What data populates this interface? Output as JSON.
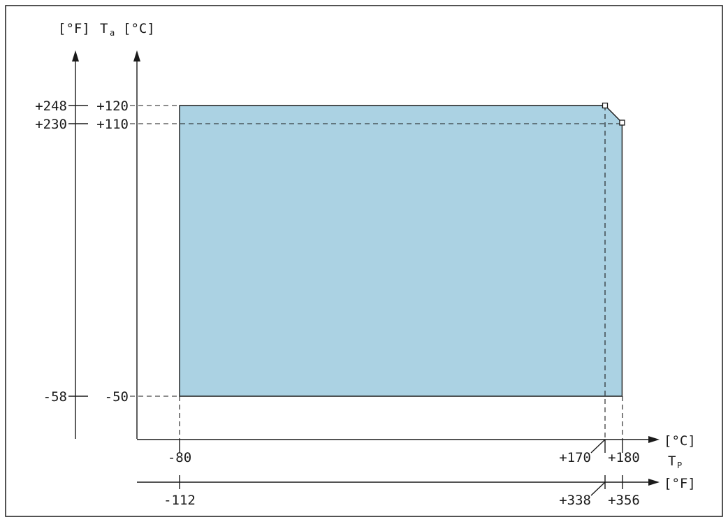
{
  "axes": {
    "y_left_unit": "[°F]",
    "y_name": "T",
    "y_name_sub": "a",
    "y_right_unit": "[°C]",
    "x_c_unit": "[°C]",
    "x_name": "T",
    "x_name_sub": "P",
    "x_f_unit": "[°F]"
  },
  "y_ticks": {
    "f": [
      "+248",
      "+230",
      "-58"
    ],
    "c": [
      "+120",
      "+110",
      "-50"
    ]
  },
  "x_ticks": {
    "c": [
      "-80",
      "+170",
      "+180"
    ],
    "f": [
      "-112",
      "+338",
      "+356"
    ]
  },
  "chart_data": {
    "type": "area",
    "title": "",
    "xlabel": "T_P",
    "ylabel": "T_a",
    "x_unit": "°C",
    "y_unit": "°C",
    "region_polygon": [
      {
        "x": -80,
        "y": -50
      },
      {
        "x": -80,
        "y": 120
      },
      {
        "x": 170,
        "y": 120
      },
      {
        "x": 180,
        "y": 110
      },
      {
        "x": 180,
        "y": -50
      }
    ],
    "marked_points": [
      {
        "x": 170,
        "y": 120
      },
      {
        "x": 180,
        "y": 110
      }
    ],
    "fill_color": "#abd2e3"
  }
}
